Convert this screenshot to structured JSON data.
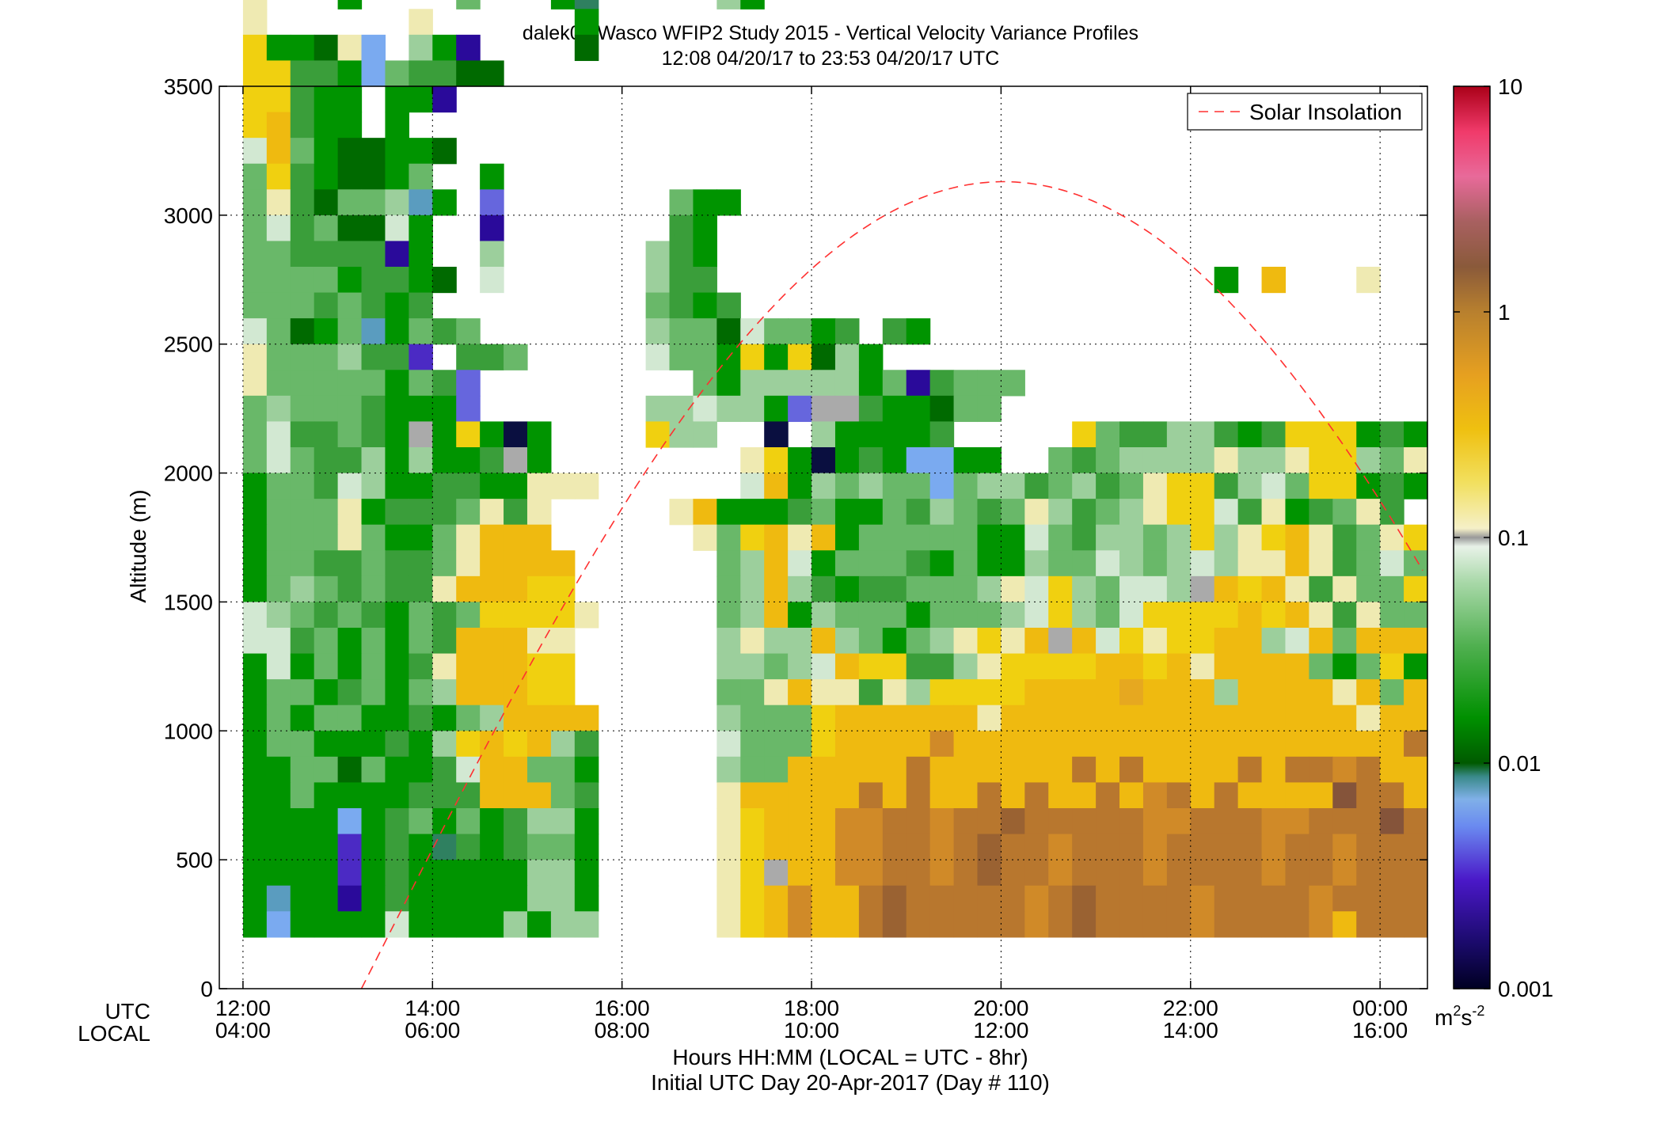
{
  "chart_data": {
    "type": "heatmap",
    "title": "dalek02 Wasco WFIP2 Study 2015 - Vertical Velocity Variance Profiles",
    "subtitle": "12:08 04/20/17 to 23:53 04/20/17  UTC",
    "ylabel": "Altitude (m)",
    "xlabel": "Hours HH:MM  (LOCAL = UTC - 8hr)",
    "xlabel2": "Initial UTC Day 20-Apr-2017 (Day # 110)",
    "x_row_label_utc": "UTC",
    "x_row_label_local": "LOCAL",
    "xlim": [
      11.75,
      24.5
    ],
    "ylim": [
      0,
      3500
    ],
    "x_ticks": [
      {
        "utc": "12:00",
        "local": "04:00",
        "value": 12
      },
      {
        "utc": "14:00",
        "local": "06:00",
        "value": 14
      },
      {
        "utc": "16:00",
        "local": "08:00",
        "value": 16
      },
      {
        "utc": "18:00",
        "local": "10:00",
        "value": 18
      },
      {
        "utc": "20:00",
        "local": "12:00",
        "value": 20
      },
      {
        "utc": "22:00",
        "local": "14:00",
        "value": 22
      },
      {
        "utc": "00:00",
        "local": "16:00",
        "value": 24
      }
    ],
    "y_ticks": [
      {
        "label": "0",
        "value": 0
      },
      {
        "label": "500",
        "value": 500
      },
      {
        "label": "1000",
        "value": 1000
      },
      {
        "label": "1500",
        "value": 1500
      },
      {
        "label": "2000",
        "value": 2000
      },
      {
        "label": "2500",
        "value": 2500
      },
      {
        "label": "3000",
        "value": 3000
      },
      {
        "label": "3500",
        "value": 3500
      }
    ],
    "grid": true,
    "legend": {
      "position": "top-right",
      "entries": [
        {
          "name": "Solar Insolation",
          "style": "dashed",
          "color": "#ff2a2a"
        }
      ]
    },
    "colorbar": {
      "scale": "log",
      "range": [
        0.001,
        10
      ],
      "ticks": [
        {
          "label": "10",
          "value": 10
        },
        {
          "label": "1",
          "value": 1
        },
        {
          "label": "0.1",
          "value": 0.1
        },
        {
          "label": "0.01",
          "value": 0.01
        },
        {
          "label": "0.001",
          "value": 0.001
        }
      ],
      "unit_base": "m",
      "unit_exp1": "2",
      "unit_mid": "s",
      "unit_exp2": "-2"
    },
    "heatmap": {
      "time_start_utc_hours": 12.0,
      "time_step_hours": 0.25,
      "alt_start_m": 200,
      "alt_step_m": 100,
      "legend_key": {
        "n": "#0a0f40",
        "V": "#2a0a9a",
        "v": "#4b2ac4",
        "p": "#6666dd",
        "l": "#7aaaf0",
        "t": "#5a9cbf",
        "u": "#2f8060",
        "D": "#006a00",
        "G": "#009400",
        "g": "#3a9e3a",
        "m": "#69b869",
        "h": "#9ccf9c",
        "w": "#d2e8d2",
        "a": "#aaaaaa",
        "c": "#efeab2",
        "y": "#f0d010",
        "Y": "#efba10",
        "o": "#e6a820",
        "O": "#d08a28",
        "b": "#b8772e",
        "B": "#9a6232",
        "r": "#85543a"
      },
      "rows_top_down": [
        "..........G.........G..............................................................",
        "........................y..........................................................",
        "n.......G...........G..............................................................",
        "m..m....Gwv.........cG.............................................................",
        "c...G....m...Gu.....hG.............................................................",
        "c......c......G....................................................................",
        "yGGDcl.hGV....D....................................................................",
        "yyggGlmggDD........................................................................",
        "yygGG.GGV..........................................................................",
        "yYgGG.G............................................................................",
        "wYmGDDGGD.......................................................y..................",
        "mygGDDGm..G........................................................................",
        "mcgDmmhtG.p.......mGG..............................................................",
        "mwgmDDwG..V.......gG...............................................................",
        "mmggggVG..h......hgG...............................................................",
        "mmmmGggGD.w......hgg.....................G.Y...c.........................t.........",
        "mmmgmgGg.........mgGg...............................y........................l.........",
        "wmDGmtGmgm.......hmmDwmmGg.gG......................................O..o..............",
        "cmmmhggv.ggm.....wmmGyGyDhG......................................O..............G.....",
        "cmmmmmGmgp.........mGhhhhhGmVgmmm.................yyo.........................G...........",
        "mhmmmgGGGp.......hhwhhGpaagGGDmm..................yo...........Y............G...........",
        "mwggmgGaGyGnG....yhh..n.hGGGGg.....ymgghhgGgyyyGgGyyhGmmGyo.........",
        "mwmgghGhGGgaG........cyGnGgGllGG..mgmhhhhchhcyyhmcmgmGwG..................",
        "GmmgwhGGggGGccc......wYGhmhmmlmhhgmhgmcyyghwmyyGgGcyG",
        "GmmmcGgggmcgc.....cYGGGgmGGmghmgmchgmhcyywgcGgmcg",
        "GmmmcmGGmcYYY......cmyYcYGmmmmmGGwmghhmhyhcyYcgmcy",
        "GmmggmggmcYYYY......mhYwGmmmgGmGGhmmwhmhwhccYcgmwmyYyy.",
        "GmhmgmggcYYYyy......mhYhgGggmmmhcwyhmwwhaYyYcgcmmyyyy...........",
        "whmgmgGmgmyyyyc.....mhYGhmmmGmmmhwyhmwyyyyYyYcgcmmYYGmGmhmy",
        "wwgmGmGmgYYYcc......hchhYhmGmhcycYaYwycyyYYhwYmYYYmmhaY",
        "GwGmGmGgcYYYyy......hhmhwYyygghcyyyyYYyYcYYYYmGmyGYYyY",
        "GmmGgmGmhYYYyy......mmcYccgchyyyyYYYYoYYYhYYYYcYmYYYYYy",
        "GmGmmGGgGmhYYYY.....hmmmyYYYYYYcYYYYYYYYYYYYYYYcYYYYYY",
        "GmmGGGgGhyYyYhg.....wmmmyYYYYOYYYYYYYYYYYYYYYYYYYbYYYYYO",
        "GGmmDmGGgwYYmmG.....hmmYYYYYbYYYYYYbYbYYYYbYbbObYYYYYO",
        "GGmGGGGgggYYYmg.....cYYYYYbYbYYbYbYYbYObYbYYYYrbbYbYYYO",
        "GGGGlGgmGmGghhG.....cyYYYOObbObbBbbbbbOObbbOObbbrbbbbObO",
        "GGGGvGgGugGgmmG.....cyYYYOObbObBbbObbbObbbbObbObbbbbObbO",
        "GGGGvGgGGGGGhhG.....cyaYYOObbObBbbObbbObbbbObbObbbbbObbO",
        "GtGGVGgGGGGGhhG.....cyYOYYbBbbbbbObBbbbbObbbbObbbbbbbbb",
        "GlGGGGwGGGGhGhh.....cyYOYYbBbbbbbObBbbbbObbbbOYbbbbbbbbb"
      ]
    }
  }
}
